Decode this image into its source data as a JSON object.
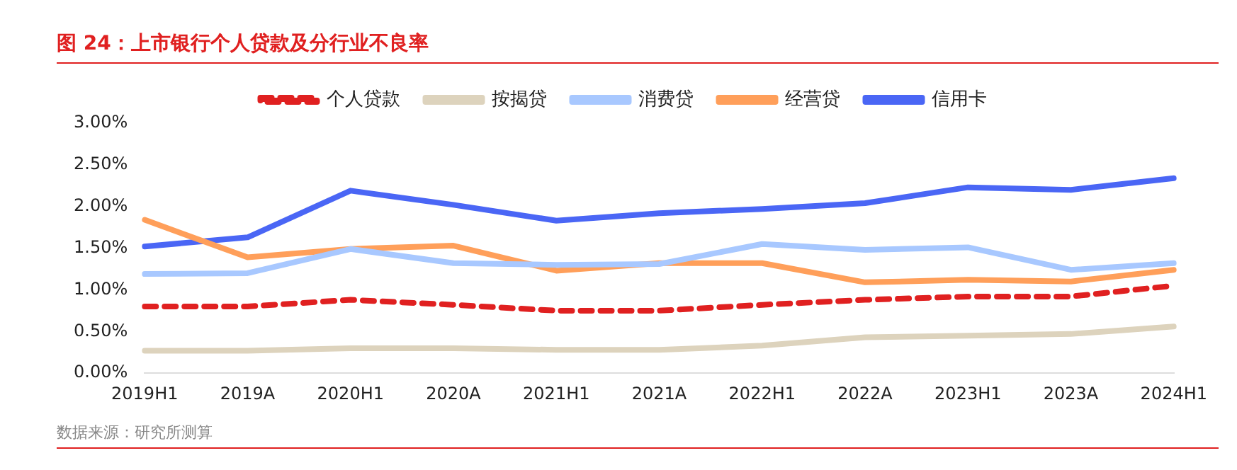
{
  "chart_data": {
    "type": "line",
    "title": "图 24：上市银行个人贷款及分行业不良率",
    "categories": [
      "2019H1",
      "2019A",
      "2020H1",
      "2020A",
      "2021H1",
      "2021A",
      "2022H1",
      "2022A",
      "2023H1",
      "2023A",
      "2024H1"
    ],
    "series": [
      {
        "name": "个人贷款",
        "color": "#e02020",
        "line_style": "dashed",
        "values": [
          0.8,
          0.8,
          0.88,
          0.82,
          0.75,
          0.75,
          0.82,
          0.88,
          0.92,
          0.92,
          1.05
        ]
      },
      {
        "name": "按揭贷",
        "color": "#ddd3bd",
        "values": [
          0.27,
          0.27,
          0.3,
          0.3,
          0.28,
          0.28,
          0.33,
          0.43,
          0.45,
          0.47,
          0.56
        ]
      },
      {
        "name": "消费贷",
        "color": "#a8c8ff",
        "values": [
          1.19,
          1.2,
          1.49,
          1.32,
          1.3,
          1.31,
          1.55,
          1.48,
          1.51,
          1.24,
          1.32
        ]
      },
      {
        "name": "经营贷",
        "color": "#ff9f5a",
        "values": [
          1.84,
          1.39,
          1.49,
          1.53,
          1.23,
          1.32,
          1.32,
          1.09,
          1.12,
          1.1,
          1.24
        ]
      },
      {
        "name": "信用卡",
        "color": "#4a66f5",
        "values": [
          1.52,
          1.63,
          2.19,
          2.02,
          1.83,
          1.92,
          1.97,
          2.04,
          2.23,
          2.2,
          2.34
        ]
      }
    ],
    "ylim": [
      0,
      3
    ],
    "yticks": [
      {
        "value": 0,
        "label": "0.00%"
      },
      {
        "value": 0.5,
        "label": "0.50%"
      },
      {
        "value": 1,
        "label": "1.00%"
      },
      {
        "value": 1.5,
        "label": "1.50%"
      },
      {
        "value": 2,
        "label": "2.00%"
      },
      {
        "value": 2.5,
        "label": "2.50%"
      },
      {
        "value": 3,
        "label": "3.00%"
      }
    ],
    "grid": false,
    "legend": "top",
    "marker": "none",
    "line_style": "solid",
    "annotations": [
      "数据来源：研究所测算"
    ]
  }
}
